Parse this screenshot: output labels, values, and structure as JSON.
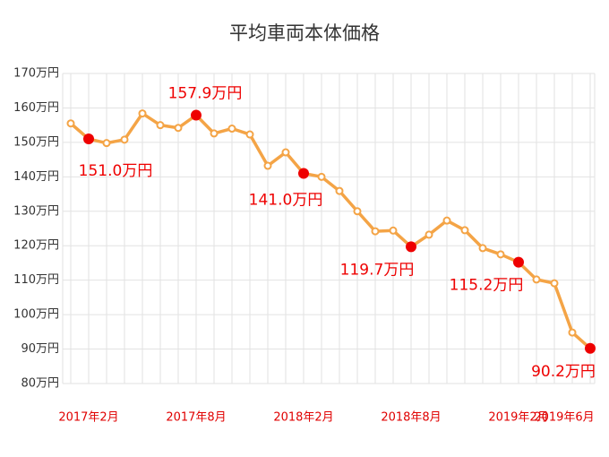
{
  "chart_data": {
    "type": "line",
    "title": "平均車両本体価格",
    "categories": [
      null,
      "2017年2月",
      null,
      null,
      null,
      null,
      null,
      "2017年8月",
      null,
      null,
      null,
      null,
      null,
      "2018年2月",
      null,
      null,
      null,
      null,
      null,
      "2018年8月",
      null,
      null,
      null,
      null,
      null,
      "2019年2月",
      null,
      null,
      null,
      "2019年6月"
    ],
    "series": [
      {
        "color": "#f4a446",
        "highlight_color": "#ee0000",
        "values": [
          155.5,
          151.0,
          149.8,
          150.8,
          158.4,
          155.0,
          154.2,
          157.9,
          152.6,
          154.0,
          152.3,
          143.2,
          147.1,
          141.0,
          140.0,
          135.9,
          130.0,
          124.2,
          124.4,
          119.7,
          123.2,
          127.3,
          124.5,
          119.3,
          117.5,
          115.2,
          110.2,
          109.1,
          94.8,
          90.2
        ],
        "value_labels": [
          null,
          "151.0万円",
          null,
          null,
          null,
          null,
          null,
          "157.9万円",
          null,
          null,
          null,
          null,
          null,
          "141.0万円",
          null,
          null,
          null,
          null,
          null,
          "119.7万円",
          null,
          null,
          null,
          null,
          null,
          "115.2万円",
          null,
          null,
          null,
          "90.2万円"
        ]
      }
    ],
    "ylim": [
      80,
      170
    ],
    "yticks": [
      {
        "value": 80,
        "label": "80万円"
      },
      {
        "value": 90,
        "label": "90万円"
      },
      {
        "value": 100,
        "label": "100万円"
      },
      {
        "value": 110,
        "label": "110万円"
      },
      {
        "value": 120,
        "label": "120万円"
      },
      {
        "value": 130,
        "label": "130万円"
      },
      {
        "value": 140,
        "label": "140万円"
      },
      {
        "value": 150,
        "label": "150万円"
      },
      {
        "value": 160,
        "label": "160万円"
      },
      {
        "value": 170,
        "label": "170万円"
      }
    ],
    "grid": true
  }
}
